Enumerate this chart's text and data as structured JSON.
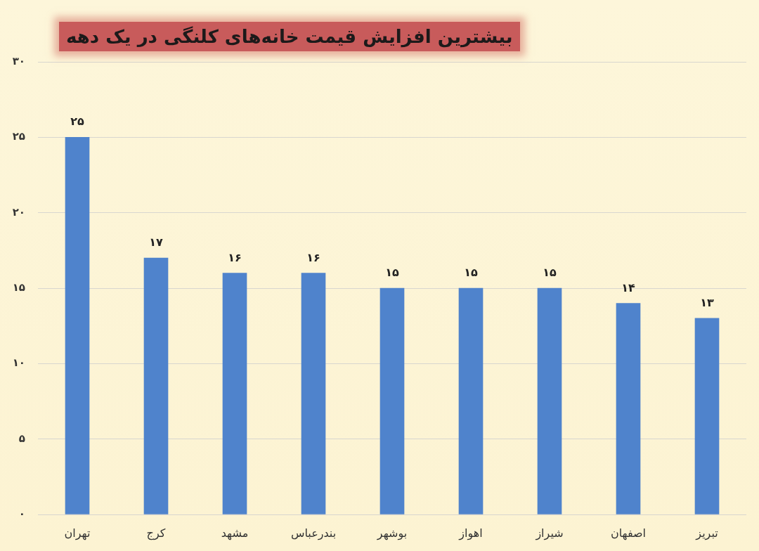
{
  "chart_data": {
    "type": "bar",
    "title": "بیشترین افزایش قیمت خانه‌های کلنگی در یک دهه",
    "categories": [
      "تهران",
      "کرج",
      "مشهد",
      "بندرعباس",
      "بوشهر",
      "اهواز",
      "شیراز",
      "اصفهان",
      "تبریز"
    ],
    "values": [
      25,
      17,
      16,
      16,
      15,
      15,
      15,
      14,
      13
    ],
    "value_labels": [
      "۲۵",
      "۱۷",
      "۱۶",
      "۱۶",
      "۱۵",
      "۱۵",
      "۱۵",
      "۱۴",
      "۱۳"
    ],
    "color": "#4f83cc",
    "ylim": [
      0,
      30
    ],
    "yticks": [
      {
        "value": 0,
        "label": "۰"
      },
      {
        "value": 5,
        "label": "۵"
      },
      {
        "value": 10,
        "label": "۱۰"
      },
      {
        "value": 15,
        "label": "۱۵"
      },
      {
        "value": 20,
        "label": "۲۰"
      },
      {
        "value": 25,
        "label": "۲۵"
      },
      {
        "value": 30,
        "label": "۳۰"
      }
    ],
    "grid": "y"
  }
}
